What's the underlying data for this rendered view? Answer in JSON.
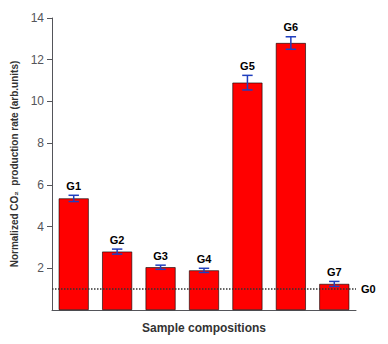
{
  "chart_data": {
    "type": "bar",
    "categories": [
      "G1",
      "G2",
      "G3",
      "G4",
      "G5",
      "G6",
      "G7"
    ],
    "values": [
      5.35,
      2.8,
      2.05,
      1.9,
      10.9,
      12.8,
      1.25
    ],
    "errors": [
      0.15,
      0.12,
      0.1,
      0.1,
      0.35,
      0.3,
      0.12
    ],
    "color": "#FF0000",
    "xlabel": "Sample compositions",
    "ylabel": "Normalized CO₂  production rate (arb.units)",
    "ylim": [
      0,
      14
    ],
    "yticks": [
      2,
      4,
      6,
      8,
      10,
      12,
      14
    ],
    "grid": false,
    "tick_labels": "y",
    "annotations": [
      {
        "text": "G0",
        "y": 1.0
      }
    ]
  }
}
